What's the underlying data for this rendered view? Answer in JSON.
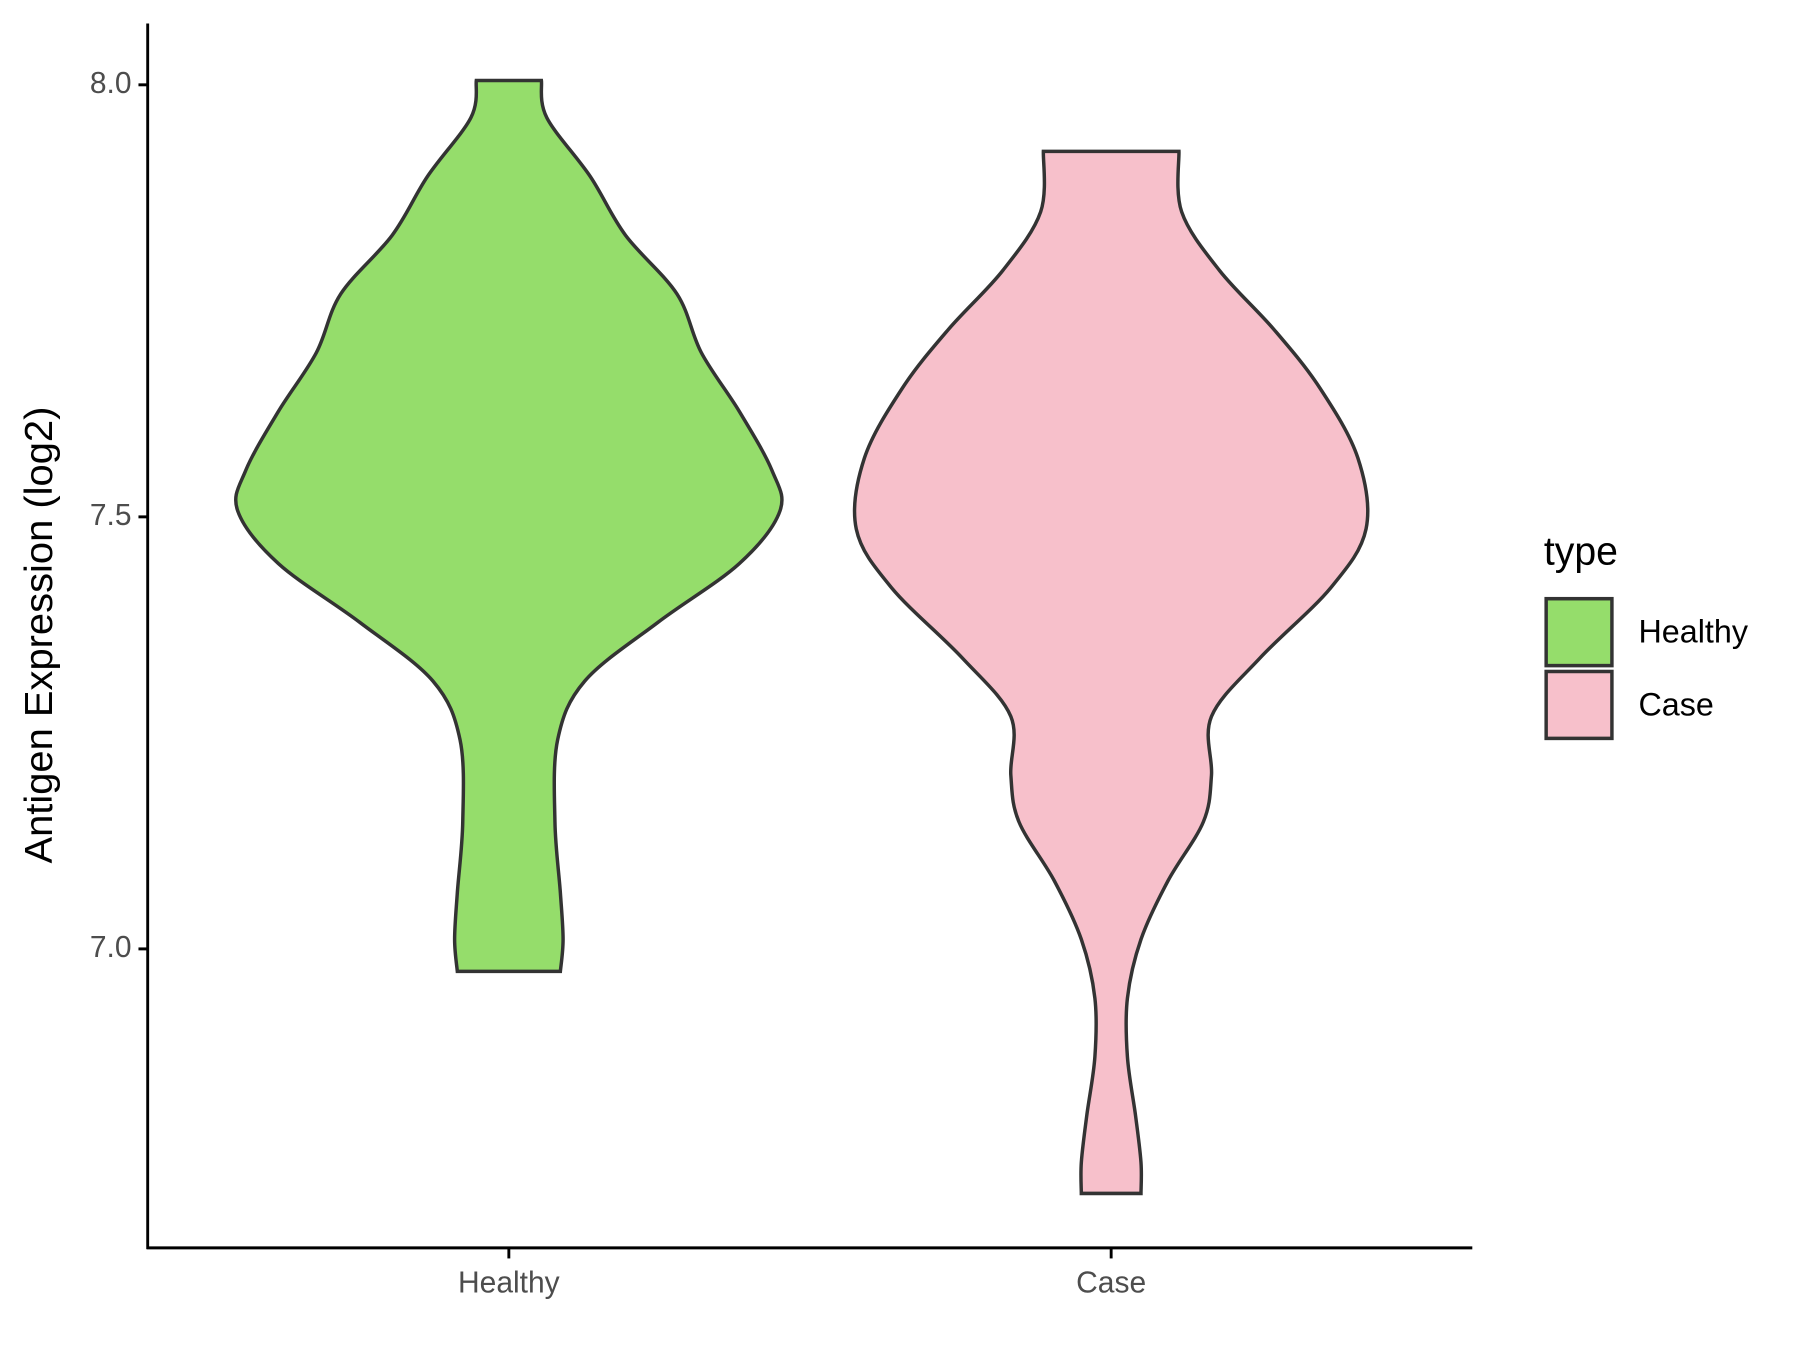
{
  "chart_data": {
    "type": "violin",
    "y_label": "Antigen Expression (log2)",
    "categories": [
      "Healthy",
      "Case"
    ],
    "legend_title": "type",
    "legend_position": "right",
    "ylim": [
      6.654,
      8.071
    ],
    "yticks": [
      {
        "value": 7.0,
        "label": "7.0"
      },
      {
        "value": 7.5,
        "label": "7.5"
      },
      {
        "value": 8.0,
        "label": "8.0"
      }
    ],
    "series": [
      {
        "name": "Healthy",
        "color": "#95dd6b",
        "y": [
          8.005,
          7.962,
          7.894,
          7.826,
          7.758,
          7.69,
          7.622,
          7.554,
          7.507,
          7.446,
          7.378,
          7.31,
          7.242,
          7.147,
          7.065,
          7.011,
          6.974
        ],
        "density": [
          0.12,
          0.14,
          0.3,
          0.43,
          0.62,
          0.71,
          0.85,
          0.97,
          1.0,
          0.85,
          0.55,
          0.28,
          0.18,
          0.17,
          0.19,
          0.2,
          0.19
        ]
      },
      {
        "name": "Case",
        "color": "#f7c0cb",
        "y": [
          7.923,
          7.853,
          7.785,
          7.717,
          7.649,
          7.568,
          7.486,
          7.418,
          7.337,
          7.269,
          7.201,
          7.147,
          7.079,
          7.011,
          6.943,
          6.875,
          6.807,
          6.753,
          6.717
        ],
        "density": [
          0.25,
          0.26,
          0.4,
          0.6,
          0.77,
          0.91,
          0.94,
          0.81,
          0.55,
          0.37,
          0.37,
          0.34,
          0.21,
          0.11,
          0.06,
          0.06,
          0.09,
          0.11,
          0.11
        ]
      }
    ]
  }
}
